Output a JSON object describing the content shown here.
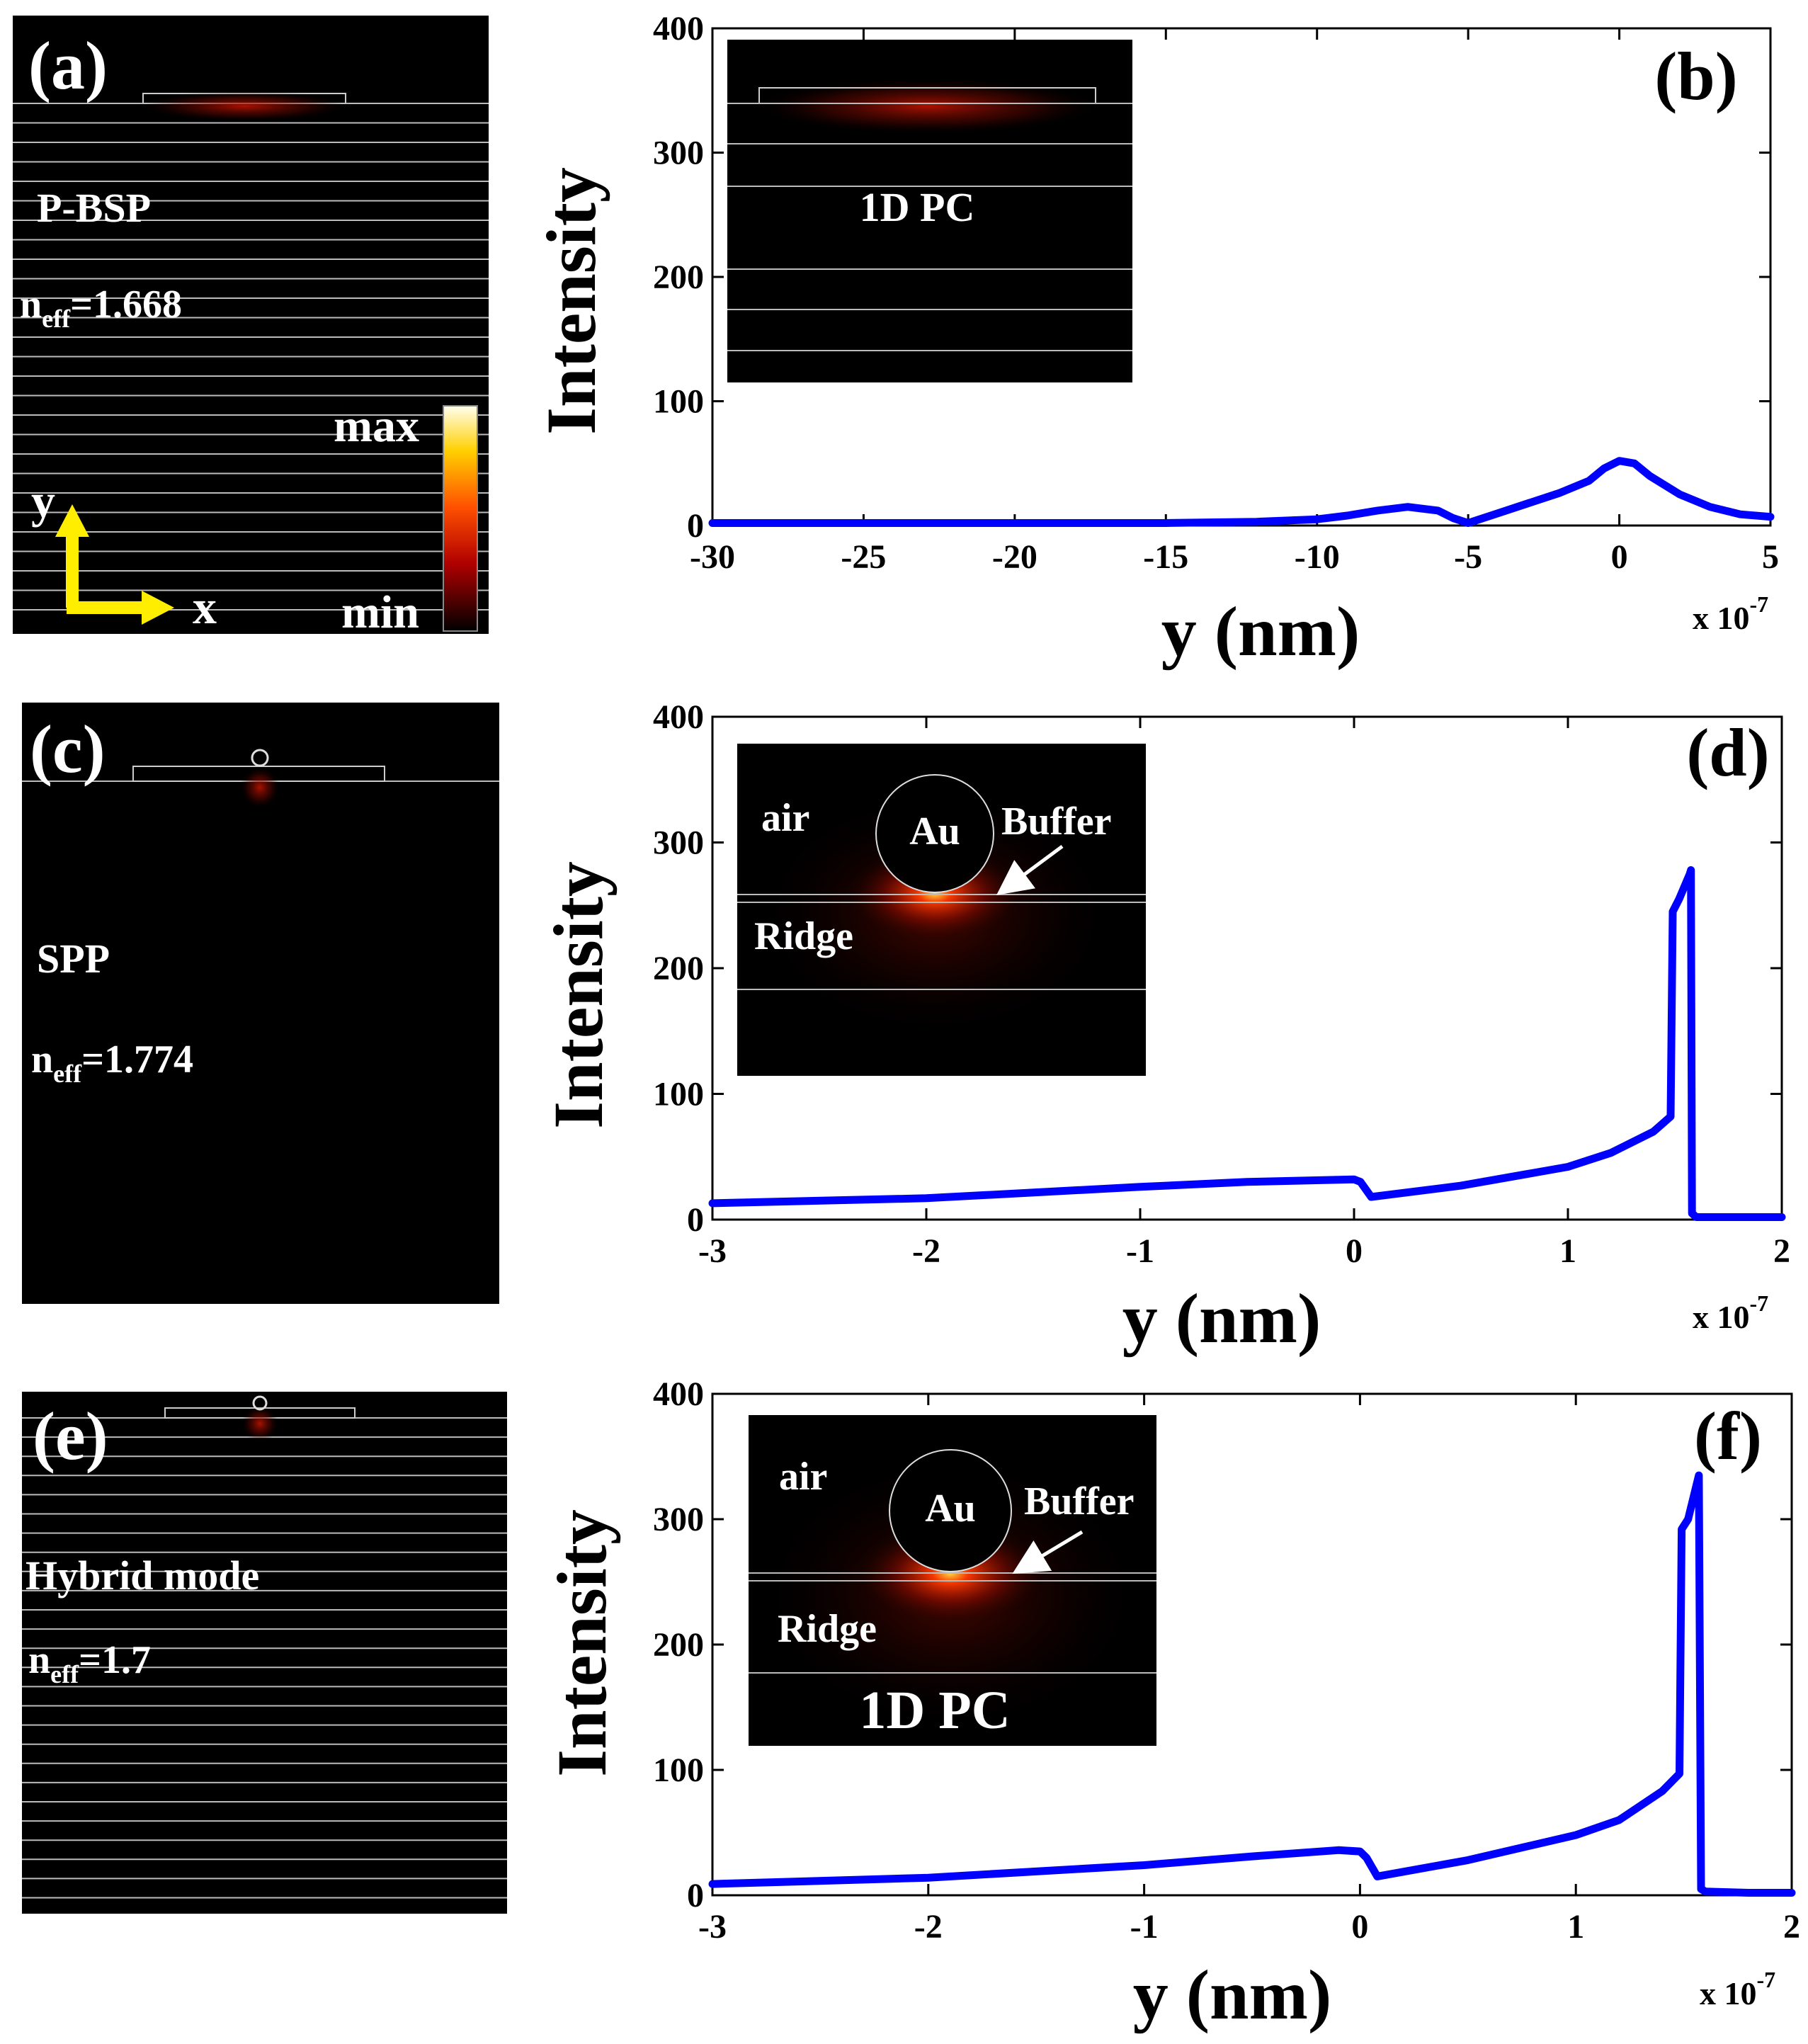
{
  "figure": {
    "panels": {
      "a": {
        "label": "(a)",
        "mode": "P-BSP",
        "neff_prefix": "n",
        "neff_sub": "eff",
        "neff_value": "=1.668",
        "colorbar_max": "max",
        "colorbar_min": "min",
        "axis_y": "y",
        "axis_x": "x"
      },
      "c": {
        "label": "(c)",
        "mode": "SPP",
        "neff_prefix": "n",
        "neff_sub": "eff",
        "neff_value": "=1.774"
      },
      "e": {
        "label": "(e)",
        "mode": "Hybrid mode",
        "neff_prefix": "n",
        "neff_sub": "eff",
        "neff_value": "=1.7"
      }
    },
    "insets": {
      "b": {
        "pc": "1D PC"
      },
      "d": {
        "air": "air",
        "au": "Au",
        "buffer": "Buffer",
        "ridge": "Ridge"
      },
      "f": {
        "air": "air",
        "au": "Au",
        "buffer": "Buffer",
        "ridge": "Ridge",
        "pc": "1D PC"
      }
    },
    "colors": {
      "line": "#0000ff",
      "background": "#000000",
      "layer": "#bbbbbb",
      "glow": "#ff2200",
      "arrow_yellow": "#ffee00"
    }
  },
  "chart_data": [
    {
      "type": "line",
      "panel_label": "(b)",
      "xlabel": "y (nm)",
      "ylabel": "Intensity",
      "multiplier": "x 10",
      "multiplier_exp": "-7",
      "xlim": [
        -30,
        5
      ],
      "ylim": [
        0,
        400
      ],
      "xticks": [
        -30,
        -25,
        -20,
        -15,
        -10,
        -5,
        0,
        5
      ],
      "xtick_labels": [
        "-30",
        "-25",
        "-20",
        "-15",
        "-10",
        "-5",
        "0",
        "5"
      ],
      "yticks": [
        0,
        100,
        200,
        300,
        400
      ],
      "ytick_labels": [
        "0",
        "100",
        "200",
        "300",
        "400"
      ],
      "series": [
        {
          "name": "intensity",
          "x": [
            -30,
            -20,
            -15,
            -12,
            -10,
            -9,
            -8,
            -7,
            -6,
            -5.5,
            -5,
            -4,
            -3,
            -2,
            -1,
            -0.5,
            0,
            0.5,
            1,
            2,
            3,
            4,
            5
          ],
          "y": [
            2,
            2,
            2,
            3,
            5,
            8,
            12,
            15,
            12,
            6,
            2,
            10,
            18,
            26,
            36,
            46,
            52,
            50,
            40,
            25,
            15,
            9,
            7
          ]
        }
      ]
    },
    {
      "type": "line",
      "panel_label": "(d)",
      "xlabel": "y (nm)",
      "ylabel": "Intensity",
      "multiplier": "x 10",
      "multiplier_exp": "-7",
      "xlim": [
        -3,
        2
      ],
      "ylim": [
        0,
        400
      ],
      "xticks": [
        -3,
        -2,
        -1,
        0,
        1,
        2
      ],
      "xtick_labels": [
        "-3",
        "-2",
        "-1",
        "0",
        "1",
        "2"
      ],
      "yticks": [
        0,
        100,
        200,
        300,
        400
      ],
      "ytick_labels": [
        "0",
        "100",
        "200",
        "300",
        "400"
      ],
      "series": [
        {
          "name": "intensity",
          "x": [
            -3,
            -2,
            -1,
            -0.5,
            0,
            0.03,
            0.08,
            0.5,
            1,
            1.2,
            1.4,
            1.48,
            1.49,
            1.52,
            1.57,
            1.575,
            1.58,
            1.6,
            1.8,
            2
          ],
          "y": [
            13,
            17,
            26,
            30,
            32,
            30,
            18,
            27,
            42,
            53,
            70,
            82,
            245,
            255,
            275,
            278,
            5,
            2,
            2,
            2
          ]
        }
      ]
    },
    {
      "type": "line",
      "panel_label": "(f)",
      "xlabel": "y (nm)",
      "ylabel": "Intensity",
      "multiplier": "x 10",
      "multiplier_exp": "-7",
      "xlim": [
        -3,
        2
      ],
      "ylim": [
        0,
        400
      ],
      "xticks": [
        -3,
        -2,
        -1,
        0,
        1,
        2
      ],
      "xtick_labels": [
        "-3",
        "-2",
        "-1",
        "0",
        "1",
        "2"
      ],
      "yticks": [
        0,
        100,
        200,
        300,
        400
      ],
      "ytick_labels": [
        "0",
        "100",
        "200",
        "300",
        "400"
      ],
      "series": [
        {
          "name": "intensity",
          "x": [
            -3,
            -2,
            -1,
            -0.5,
            -0.1,
            0,
            0.03,
            0.08,
            0.5,
            1,
            1.2,
            1.4,
            1.48,
            1.49,
            1.52,
            1.57,
            1.58,
            1.6,
            1.8,
            2
          ],
          "y": [
            9,
            14,
            24,
            31,
            36,
            35,
            30,
            15,
            28,
            48,
            60,
            83,
            97,
            292,
            300,
            335,
            5,
            3,
            2,
            2
          ]
        }
      ]
    }
  ]
}
